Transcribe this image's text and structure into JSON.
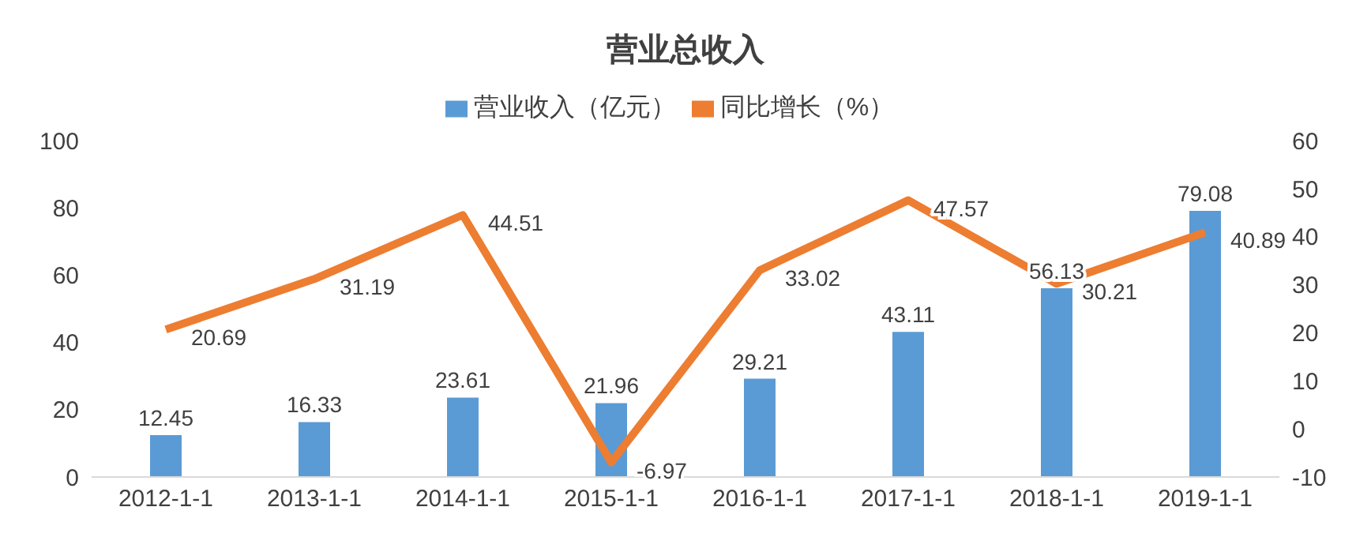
{
  "chart_data": {
    "type": "bar",
    "title": "营业总收入",
    "categories": [
      "2012-1-1",
      "2013-1-1",
      "2014-1-1",
      "2015-1-1",
      "2016-1-1",
      "2017-1-1",
      "2018-1-1",
      "2019-1-1"
    ],
    "series": [
      {
        "name": "营业收入（亿元）",
        "type": "bar",
        "color": "#5b9bd5",
        "values": [
          12.45,
          16.33,
          23.61,
          21.96,
          29.21,
          43.11,
          56.13,
          79.08
        ]
      },
      {
        "name": "同比增长（%）",
        "type": "line",
        "axis": "y2",
        "color": "#ed7d31",
        "values": [
          20.69,
          31.19,
          44.51,
          -6.97,
          33.02,
          47.57,
          30.21,
          40.89
        ]
      }
    ],
    "ylim": [
      0,
      100
    ],
    "yticks": [
      0,
      20,
      40,
      60,
      80,
      100
    ],
    "y2lim": [
      -10,
      60
    ],
    "y2ticks": [
      -10,
      0,
      10,
      20,
      30,
      40,
      50,
      60
    ],
    "data_labels": true,
    "legend": "top",
    "grid": false,
    "marker": "none"
  }
}
